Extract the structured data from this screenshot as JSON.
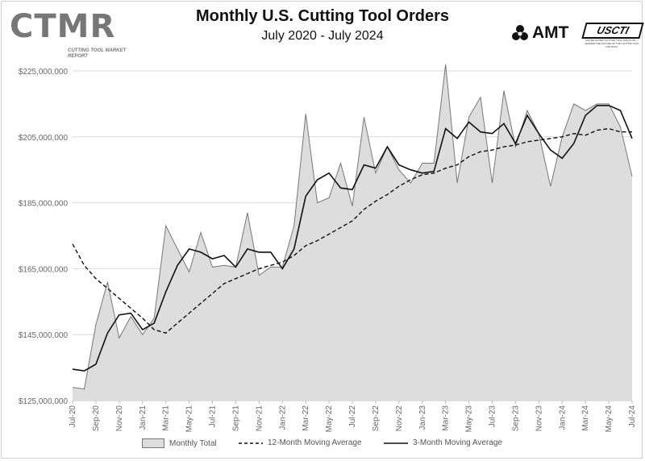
{
  "header": {
    "title": "Monthly U.S. Cutting Tool Orders",
    "subtitle": "July 2020 - July 2024",
    "logo_text": "CTMR",
    "logo_sub": "CUTTING TOOL MARKET REPORT",
    "amt_text": "AMT",
    "uscti_text": "USCTI",
    "uscti_sub": "UNITED STATES CUTTING TOOL INSTITUTE — LEADING THE FUTURE OF THE CUTTING TOOL INDUSTRY"
  },
  "chart_data": {
    "type": "area",
    "title": "Monthly U.S. Cutting Tool Orders",
    "subtitle": "July 2020 - July 2024",
    "xlabel": "",
    "ylabel": "",
    "ylim": [
      125000000,
      225000000
    ],
    "y_ticks": [
      125000000,
      145000000,
      165000000,
      185000000,
      205000000,
      225000000
    ],
    "y_tick_labels": [
      "$125,000,000",
      "$145,000,000",
      "$165,000,000",
      "$185,000,000",
      "$205,000,000",
      "$225,000,000"
    ],
    "x_tick_labels": [
      "Jul-20",
      "Sep-20",
      "Nov-20",
      "Jan-21",
      "Mar-21",
      "May-21",
      "Jul-21",
      "Sep-21",
      "Nov-21",
      "Jan-22",
      "Mar-22",
      "May-22",
      "Jul-22",
      "Sep-22",
      "Nov-22",
      "Jan-23",
      "Mar-23",
      "May-23",
      "Jul-23",
      "Sep-23",
      "Nov-23",
      "Jan-24",
      "Mar-24",
      "May-24",
      "Jul-24"
    ],
    "grid": true,
    "legend_position": "bottom",
    "series": [
      {
        "name": "Monthly Total",
        "style": "area",
        "color": "#dddddd",
        "edge": "#777777",
        "values": [
          129000000,
          128500000,
          148000000,
          161000000,
          144000000,
          150500000,
          145000000,
          150000000,
          178000000,
          171000000,
          164000000,
          176000000,
          165500000,
          166000000,
          165500000,
          182000000,
          163000000,
          165500000,
          165500000,
          178000000,
          212000000,
          185000000,
          186500000,
          197000000,
          184000000,
          211000000,
          194000000,
          202000000,
          195000000,
          191000000,
          197000000,
          197000000,
          227000000,
          191000000,
          211000000,
          217000000,
          191000000,
          219000000,
          202000000,
          213000000,
          206000000,
          190000000,
          205000000,
          215000000,
          213000000,
          215000000,
          215000000,
          208000000,
          193000000
        ]
      },
      {
        "name": "12-Month Moving Average",
        "style": "dashed",
        "color": "#111111",
        "values": [
          172500000,
          166000000,
          162000000,
          159000000,
          156000000,
          153000000,
          150000000,
          146500000,
          145500000,
          148500000,
          151500000,
          154500000,
          157500000,
          160500000,
          162000000,
          163500000,
          165000000,
          166000000,
          167000000,
          169000000,
          172000000,
          173500000,
          175500000,
          177500000,
          179500000,
          183000000,
          185500000,
          187500000,
          190000000,
          192000000,
          193500000,
          194000000,
          195500000,
          196500000,
          199000000,
          200500000,
          201000000,
          202000000,
          202500000,
          203500000,
          204000000,
          204500000,
          205000000,
          206000000,
          205500000,
          207000000,
          207500000,
          206500000,
          206500000
        ]
      },
      {
        "name": "3-Month Moving Average",
        "style": "solid",
        "color": "#111111",
        "values": [
          134500000,
          134000000,
          136000000,
          145500000,
          151000000,
          151500000,
          146500000,
          148500000,
          158000000,
          166000000,
          171000000,
          170000000,
          168000000,
          169000000,
          165500000,
          171000000,
          170000000,
          170000000,
          165000000,
          171000000,
          187000000,
          192000000,
          194000000,
          189500000,
          189000000,
          196500000,
          195500000,
          202000000,
          196500000,
          195000000,
          194000000,
          194500000,
          207500000,
          204500000,
          209500000,
          206500000,
          206000000,
          209000000,
          203000000,
          211500000,
          206000000,
          201000000,
          198500000,
          203000000,
          211500000,
          214500000,
          214500000,
          213000000,
          204500000
        ]
      }
    ]
  }
}
